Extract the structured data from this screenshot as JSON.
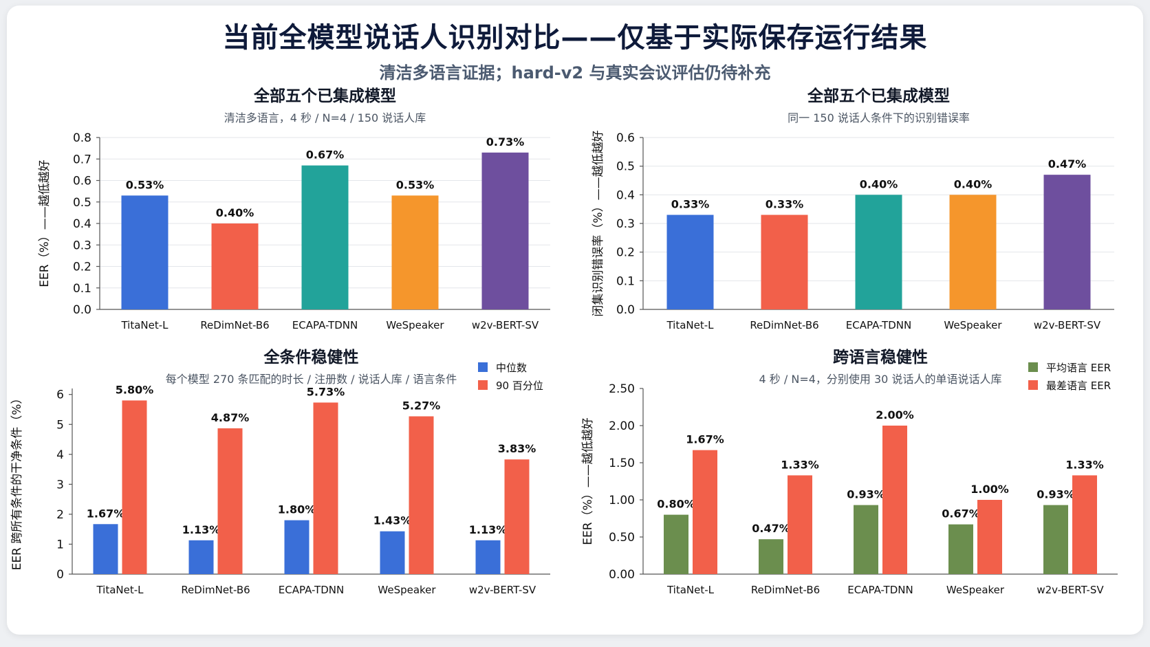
{
  "header": {
    "title": "当前全模型说话人识别对比——仅基于实际保存运行结果",
    "subtitle": "清洁多语言证据；hard-v2 与真实会议评估仍待补充"
  },
  "chart_data": [
    {
      "id": "c1",
      "type": "bar",
      "title": "全部五个已集成模型",
      "subtitle": "清洁多语言，4 秒 / N=4 / 150 说话人库",
      "ylabel": "EER（%）——越低越好",
      "categories": [
        "TitaNet-L",
        "ReDimNet-B6",
        "ECAPA-TDNN",
        "WeSpeaker",
        "w2v-BERT-SV"
      ],
      "values": [
        0.53,
        0.4,
        0.67,
        0.53,
        0.73
      ],
      "labels": [
        "0.53%",
        "0.40%",
        "0.67%",
        "0.53%",
        "0.73%"
      ],
      "colors": [
        "#3a6fd8",
        "#f2604a",
        "#22a39a",
        "#f5962c",
        "#6e4f9e"
      ],
      "ylim": [
        0,
        0.8
      ],
      "yticks": [
        "0.0",
        "0.1",
        "0.2",
        "0.3",
        "0.4",
        "0.5",
        "0.6",
        "0.7",
        "0.8"
      ],
      "grid": "horizontal"
    },
    {
      "id": "c2",
      "type": "bar",
      "title": "全部五个已集成模型",
      "subtitle": "同一 150 说话人条件下的识别错误率",
      "ylabel": "闭集识别错误率（%）——越低越好",
      "categories": [
        "TitaNet-L",
        "ReDimNet-B6",
        "ECAPA-TDNN",
        "WeSpeaker",
        "w2v-BERT-SV"
      ],
      "values": [
        0.33,
        0.33,
        0.4,
        0.4,
        0.47
      ],
      "labels": [
        "0.33%",
        "0.33%",
        "0.40%",
        "0.40%",
        "0.47%"
      ],
      "colors": [
        "#3a6fd8",
        "#f2604a",
        "#22a39a",
        "#f5962c",
        "#6e4f9e"
      ],
      "ylim": [
        0,
        0.6
      ],
      "yticks": [
        "0.0",
        "0.1",
        "0.2",
        "0.3",
        "0.4",
        "0.5",
        "0.6"
      ],
      "grid": "horizontal"
    },
    {
      "id": "c3",
      "type": "bar",
      "title": "全条件稳健性",
      "subtitle": "每个模型 270 条匹配的时长 / 注册数 / 说话人库 / 语言条件",
      "ylabel": "EER 跨所有条件的干净条件（%）",
      "categories": [
        "TitaNet-L",
        "ReDimNet-B6",
        "ECAPA-TDNN",
        "WeSpeaker",
        "w2v-BERT-SV"
      ],
      "series": [
        {
          "name": "中位数",
          "color": "#3a6fd8",
          "values": [
            1.67,
            1.13,
            1.8,
            1.43,
            1.13
          ],
          "labels": [
            "1.67%",
            "1.13%",
            "1.80%",
            "1.43%",
            "1.13%"
          ]
        },
        {
          "name": "90 百分位",
          "color": "#f2604a",
          "values": [
            5.8,
            4.87,
            5.73,
            5.27,
            3.83
          ],
          "labels": [
            "5.80%",
            "4.87%",
            "5.73%",
            "5.27%",
            "3.83%"
          ]
        }
      ],
      "ylim": [
        0,
        6.2
      ],
      "yticks": [
        "0",
        "1",
        "2",
        "3",
        "4",
        "5",
        "6"
      ],
      "legend": "top-right",
      "grid": "none"
    },
    {
      "id": "c4",
      "type": "bar",
      "title": "跨语言稳健性",
      "subtitle": "4 秒 / N=4，分别使用 30 说话人的单语说话人库",
      "ylabel": "EER（%）——越低越好",
      "categories": [
        "TitaNet-L",
        "ReDimNet-B6",
        "ECAPA-TDNN",
        "WeSpeaker",
        "w2v-BERT-SV"
      ],
      "series": [
        {
          "name": "平均语言 EER",
          "color": "#6b8e4e",
          "values": [
            0.8,
            0.47,
            0.93,
            0.67,
            0.93
          ],
          "labels": [
            "0.80%",
            "0.47%",
            "0.93%",
            "0.67%",
            "0.93%"
          ]
        },
        {
          "name": "最差语言 EER",
          "color": "#f2604a",
          "values": [
            1.67,
            1.33,
            2.0,
            1.0,
            1.33
          ],
          "labels": [
            "1.67%",
            "1.33%",
            "2.00%",
            "1.00%",
            "1.33%"
          ]
        }
      ],
      "ylim": [
        0,
        2.5
      ],
      "yticks": [
        "0.00",
        "0.50",
        "1.00",
        "1.50",
        "2.00",
        "2.50"
      ],
      "legend": "top-right",
      "grid": "none"
    }
  ]
}
